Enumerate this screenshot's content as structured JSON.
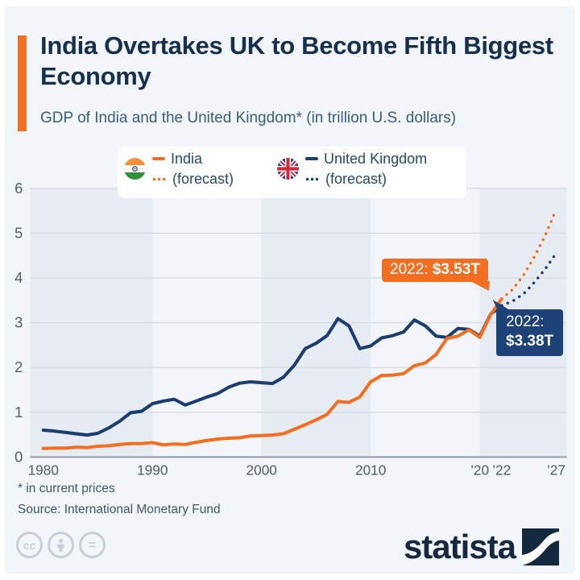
{
  "header": {
    "title": "India Overtakes UK to Become Fifth Biggest Economy",
    "subtitle": "GDP of India and the United Kingdom* (in trillion U.S. dollars)",
    "accent_color": "#f36f21"
  },
  "legend": {
    "india": {
      "label": "India",
      "forecast_label": "(forecast)",
      "color": "#f26f21"
    },
    "uk": {
      "label": "United Kingdom",
      "forecast_label": "(forecast)",
      "color": "#1b3e6f"
    }
  },
  "chart_data": {
    "type": "line",
    "title": "GDP of India and the United Kingdom in trillion U.S. dollars",
    "xlabel": "",
    "ylabel": "",
    "ylim": [
      0,
      6
    ],
    "yticks": [
      0,
      1,
      2,
      3,
      4,
      5,
      6
    ],
    "xticks": [
      {
        "year": 1980,
        "label": "1980"
      },
      {
        "year": 1990,
        "label": "1990"
      },
      {
        "year": 2000,
        "label": "2000"
      },
      {
        "year": 2010,
        "label": "2010"
      },
      {
        "year": 2020,
        "label": "’20"
      },
      {
        "year": 2022,
        "label": "’22"
      },
      {
        "year": 2027,
        "label": "’27"
      }
    ],
    "grid": "horizontal",
    "legend_position": "top",
    "background_bands_years": [
      [
        1978.8,
        1990
      ],
      [
        2000,
        2010
      ],
      [
        2020,
        2027.95
      ]
    ],
    "band_color": "#e7ebf2",
    "series": [
      {
        "name": "United Kingdom",
        "color": "#1b3e6f",
        "style": "solid",
        "start_year": 1980,
        "values": [
          0.6,
          0.58,
          0.55,
          0.52,
          0.49,
          0.53,
          0.65,
          0.8,
          0.99,
          1.02,
          1.19,
          1.25,
          1.29,
          1.16,
          1.25,
          1.34,
          1.42,
          1.56,
          1.65,
          1.68,
          1.66,
          1.64,
          1.78,
          2.05,
          2.42,
          2.54,
          2.71,
          3.09,
          2.93,
          2.42,
          2.48,
          2.66,
          2.71,
          2.79,
          3.06,
          2.93,
          2.7,
          2.67,
          2.87,
          2.85,
          2.7,
          3.19,
          3.38
        ]
      },
      {
        "name": "India",
        "color": "#f26f21",
        "style": "solid",
        "start_year": 1980,
        "values": [
          0.19,
          0.2,
          0.2,
          0.22,
          0.21,
          0.24,
          0.25,
          0.28,
          0.3,
          0.3,
          0.32,
          0.27,
          0.29,
          0.28,
          0.33,
          0.37,
          0.4,
          0.42,
          0.43,
          0.47,
          0.48,
          0.49,
          0.52,
          0.62,
          0.72,
          0.83,
          0.95,
          1.24,
          1.22,
          1.34,
          1.68,
          1.82,
          1.83,
          1.86,
          2.04,
          2.1,
          2.29,
          2.65,
          2.7,
          2.84,
          2.67,
          3.18,
          3.53
        ]
      },
      {
        "name": "United Kingdom (forecast)",
        "color": "#1b3e6f",
        "style": "dotted",
        "start_year": 2022,
        "values": [
          3.38,
          3.48,
          3.64,
          3.9,
          4.2,
          4.55
        ]
      },
      {
        "name": "India (forecast)",
        "color": "#f26f21",
        "style": "dotted",
        "start_year": 2022,
        "values": [
          3.53,
          3.74,
          4.06,
          4.47,
          4.95,
          5.53
        ]
      }
    ],
    "annotations": [
      {
        "target": "India",
        "year": 2022,
        "text": "2022: $3.53T"
      },
      {
        "target": "United Kingdom",
        "year": 2022,
        "text": "2022: $3.38T"
      }
    ]
  },
  "callouts": {
    "india": {
      "prefix": "2022:",
      "value": "$3.53T"
    },
    "uk": {
      "prefix": "2022:",
      "value": "$3.38T"
    }
  },
  "footer": {
    "footnote": "* in current prices",
    "source": "Source: International Monetary Fund",
    "cc_label": "cc",
    "nd_label": "=",
    "brand": "statista"
  }
}
